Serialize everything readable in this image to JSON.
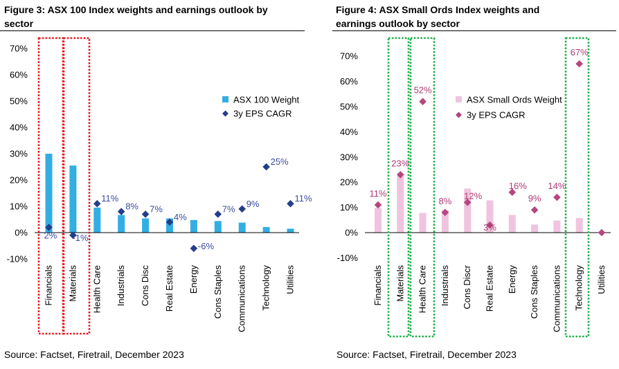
{
  "figures": [
    {
      "title_line1": "Figure 3: ASX 100 Index weights and earnings outlook by",
      "title_line2": "sector",
      "source": "Source: Factset, Firetrail, December 2023",
      "chart_data": {
        "type": "bar",
        "categories": [
          "Financials",
          "Materials",
          "Health Care",
          "Industrials",
          "Cons Disc",
          "Real Estate",
          "Energy",
          "Cons Staples",
          "Communications",
          "Technology",
          "Utilities"
        ],
        "series": [
          {
            "name": "ASX 100 Weight",
            "type": "bar",
            "values": [
              30,
              25.5,
              9.5,
              6.7,
              5.4,
              5.4,
              4.8,
              4.4,
              3.8,
              2.1,
              1.5
            ]
          },
          {
            "name": "3y EPS CAGR",
            "type": "scatter",
            "marker": "diamond",
            "values": [
              2,
              -1,
              11,
              8,
              7,
              4,
              -6,
              7,
              9,
              25,
              11
            ]
          }
        ],
        "data_labels": [
          "2%",
          "-1%",
          "11%",
          "8%",
          "7%",
          "4%",
          "-6%",
          "7%",
          "9%",
          "25%",
          "11%"
        ],
        "y_ticks": [
          "-10%",
          "0%",
          "10%",
          "20%",
          "30%",
          "40%",
          "50%",
          "60%",
          "70%"
        ],
        "ylim": [
          -10,
          70
        ],
        "legend_position": "right",
        "highlighted_categories": [
          "Financials",
          "Materials"
        ],
        "colors": {
          "bar": "#33aee3",
          "marker": "#233e8b",
          "label": "#3a4d9e",
          "highlight": "#e8161b"
        }
      }
    },
    {
      "title_line1": "Figure 4: ASX Small Ords Index weights and",
      "title_line2": "earnings outlook by sector",
      "source": "Source: Factset, Firetrail, December 2023",
      "chart_data": {
        "type": "bar",
        "categories": [
          "Financials",
          "Materials",
          "Health Care",
          "Industrials",
          "Cons Discr",
          "Real Estate",
          "Energy",
          "Cons Staples",
          "Communications",
          "Technology",
          "Utilities"
        ],
        "series": [
          {
            "name": "ASX Small Ords Weight",
            "type": "bar",
            "values": [
              9.8,
              22.5,
              7.8,
              9,
              17.5,
              12.8,
              7,
              3.2,
              4.8,
              5.8,
              0.4
            ]
          },
          {
            "name": "3y EPS CAGR",
            "type": "scatter",
            "marker": "diamond",
            "values": [
              11,
              23,
              52,
              8,
              12,
              3,
              16,
              9,
              14,
              67,
              0
            ]
          }
        ],
        "data_labels": [
          "11%",
          "23%",
          "52%",
          "8%",
          "12%",
          "3%",
          "16%",
          "9%",
          "14%",
          "67%",
          ""
        ],
        "y_ticks": [
          "-10%",
          "0%",
          "10%",
          "20%",
          "30%",
          "40%",
          "50%",
          "60%",
          "70%"
        ],
        "ylim": [
          -10,
          70
        ],
        "legend_position": "right",
        "highlighted_categories": [
          "Materials",
          "Health Care",
          "Technology"
        ],
        "colors": {
          "bar": "#f0c4df",
          "marker": "#b5467e",
          "label": "#b03a76",
          "highlight": "#1eb04a"
        }
      }
    }
  ]
}
